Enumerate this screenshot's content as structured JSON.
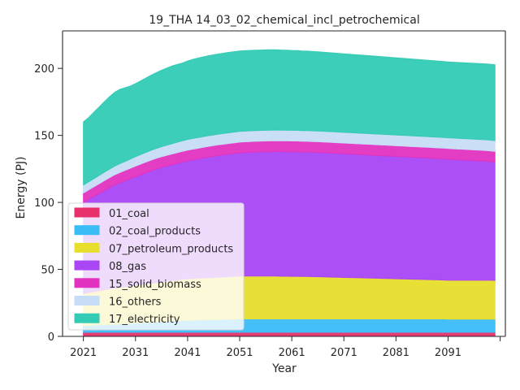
{
  "chart_data": {
    "type": "area",
    "title": "19_THA 14_03_02_chemical_incl_petrochemical",
    "xlabel": "Year",
    "ylabel": "Energy (PJ)",
    "xlim": [
      2017,
      2102
    ],
    "ylim": [
      0,
      228
    ],
    "x_ticks": [
      2021,
      2031,
      2041,
      2051,
      2061,
      2071,
      2081,
      2091,
      2101
    ],
    "x_tick_labels": [
      "2021",
      "2031",
      "2041",
      "2051",
      "2061",
      "2071",
      "2081",
      "2091",
      ""
    ],
    "y_ticks": [
      0,
      50,
      100,
      150,
      200
    ],
    "y_tick_labels": [
      "0",
      "50",
      "100",
      "150",
      "200"
    ],
    "legend_position": "lower-left",
    "stacked": true,
    "x": [
      2021,
      2022,
      2023,
      2024,
      2025,
      2026,
      2027,
      2028,
      2029,
      2030,
      2031,
      2032,
      2033,
      2034,
      2035,
      2036,
      2037,
      2038,
      2039,
      2040,
      2041,
      2042,
      2043,
      2044,
      2045,
      2046,
      2047,
      2048,
      2049,
      2050,
      2051,
      2052,
      2053,
      2054,
      2055,
      2056,
      2057,
      2058,
      2059,
      2060,
      2061,
      2062,
      2063,
      2064,
      2065,
      2066,
      2067,
      2068,
      2069,
      2070,
      2071,
      2072,
      2073,
      2074,
      2075,
      2076,
      2077,
      2078,
      2079,
      2080,
      2081,
      2082,
      2083,
      2084,
      2085,
      2086,
      2087,
      2088,
      2089,
      2090,
      2091,
      2092,
      2093,
      2094,
      2095,
      2096,
      2097,
      2098,
      2099,
      2100
    ],
    "series": [
      {
        "name": "01_coal",
        "color": "#e8306a",
        "values": [
          3.0,
          3.0,
          3.0,
          3.0,
          3.0,
          3.0,
          3.0,
          3.0,
          3.0,
          3.0,
          3.0,
          3.0,
          3.0,
          3.0,
          3.0,
          3.0,
          3.0,
          3.0,
          3.0,
          3.0,
          3.0,
          3.0,
          3.0,
          3.0,
          3.0,
          3.0,
          3.0,
          3.0,
          3.0,
          3.0,
          3.0,
          3.0,
          3.0,
          3.0,
          3.0,
          3.0,
          3.0,
          3.0,
          3.0,
          3.0,
          3.0,
          3.0,
          3.0,
          3.0,
          3.0,
          3.0,
          3.0,
          3.0,
          3.0,
          3.0,
          3.0,
          3.0,
          3.0,
          3.0,
          3.0,
          3.0,
          3.0,
          3.0,
          3.0,
          3.0,
          3.0,
          3.0,
          3.0,
          3.0,
          3.0,
          3.0,
          3.0,
          3.0,
          3.0,
          3.0,
          3.0,
          3.0,
          3.0,
          3.0,
          3.0,
          3.0,
          3.0,
          3.0,
          3.0,
          3.0
        ]
      },
      {
        "name": "02_coal_products",
        "color": "#3bbcf7",
        "values": [
          5.0,
          5.2,
          5.4,
          5.6,
          5.8,
          6.0,
          6.2,
          6.4,
          6.6,
          6.8,
          7.0,
          7.2,
          7.4,
          7.6,
          7.8,
          8.0,
          8.2,
          8.4,
          8.6,
          8.8,
          9.0,
          9.1,
          9.2,
          9.3,
          9.4,
          9.5,
          9.6,
          9.7,
          9.8,
          9.9,
          10.0,
          10.0,
          10.0,
          10.0,
          10.0,
          10.0,
          10.0,
          10.0,
          10.0,
          10.0,
          10.0,
          10.0,
          10.0,
          10.0,
          10.0,
          10.0,
          10.0,
          10.0,
          10.0,
          10.0,
          10.0,
          10.0,
          10.0,
          10.0,
          10.0,
          10.0,
          10.0,
          10.0,
          10.0,
          10.0,
          10.0,
          10.0,
          10.0,
          10.0,
          10.0,
          10.0,
          10.0,
          10.0,
          10.0,
          10.0,
          9.9,
          9.9,
          9.9,
          9.9,
          9.9,
          9.9,
          9.9,
          9.9,
          9.9,
          9.8
        ]
      },
      {
        "name": "07_petroleum_products",
        "color": "#e8de2c",
        "values": [
          24.0,
          24.5,
          25.0,
          25.5,
          26.0,
          26.4,
          26.8,
          27.2,
          27.5,
          27.8,
          28.1,
          28.4,
          28.7,
          29.0,
          29.3,
          29.6,
          29.9,
          30.2,
          30.5,
          30.8,
          31.0,
          31.1,
          31.2,
          31.3,
          31.4,
          31.5,
          31.6,
          31.7,
          31.8,
          31.9,
          32.0,
          32.0,
          32.0,
          32.0,
          32.0,
          32.0,
          32.0,
          32.0,
          31.9,
          31.9,
          31.8,
          31.8,
          31.7,
          31.7,
          31.6,
          31.5,
          31.4,
          31.3,
          31.2,
          31.1,
          31.0,
          30.9,
          30.8,
          30.7,
          30.6,
          30.5,
          30.4,
          30.3,
          30.2,
          30.1,
          30.0,
          29.9,
          29.8,
          29.7,
          29.6,
          29.5,
          29.4,
          29.3,
          29.2,
          29.1,
          29.0,
          29.0,
          29.0,
          29.0,
          29.0,
          29.0,
          29.0,
          29.0,
          29.0,
          29.0
        ]
      },
      {
        "name": "08_gas",
        "color": "#a946f5",
        "values": [
          68.0,
          69.5,
          71.0,
          72.5,
          74.0,
          75.5,
          77.0,
          78.0,
          79.0,
          80.0,
          81.0,
          82.0,
          83.0,
          84.0,
          84.8,
          85.5,
          86.0,
          86.5,
          87.0,
          87.5,
          88.0,
          88.5,
          89.0,
          89.5,
          90.0,
          90.4,
          90.8,
          91.1,
          91.4,
          91.7,
          92.0,
          92.2,
          92.4,
          92.6,
          92.7,
          92.8,
          92.9,
          93.0,
          93.0,
          93.0,
          93.0,
          93.0,
          92.9,
          92.9,
          92.8,
          92.8,
          92.7,
          92.6,
          92.5,
          92.4,
          92.3,
          92.2,
          92.1,
          92.0,
          91.9,
          91.8,
          91.7,
          91.6,
          91.5,
          91.4,
          91.3,
          91.2,
          91.1,
          91.0,
          90.9,
          90.8,
          90.7,
          90.6,
          90.5,
          90.4,
          90.3,
          90.1,
          89.9,
          89.7,
          89.5,
          89.3,
          89.1,
          88.9,
          88.6,
          88.3
        ]
      },
      {
        "name": "15_solid_biomass",
        "color": "#e233c0",
        "values": [
          7.0,
          7.1,
          7.2,
          7.3,
          7.4,
          7.5,
          7.6,
          7.7,
          7.8,
          7.9,
          8.0,
          8.0,
          8.0,
          8.0,
          8.0,
          8.0,
          8.0,
          8.0,
          8.0,
          8.0,
          8.0,
          8.0,
          8.0,
          8.0,
          8.0,
          8.0,
          8.0,
          8.0,
          8.0,
          8.0,
          8.0,
          8.0,
          8.0,
          8.0,
          8.0,
          8.0,
          8.0,
          8.0,
          8.0,
          8.0,
          8.0,
          8.0,
          8.0,
          8.0,
          8.0,
          8.0,
          8.0,
          8.0,
          8.0,
          8.0,
          8.0,
          8.0,
          8.0,
          8.0,
          8.0,
          8.0,
          8.0,
          8.0,
          8.0,
          8.0,
          8.0,
          8.0,
          8.0,
          8.0,
          8.0,
          8.0,
          8.0,
          8.0,
          8.0,
          8.0,
          8.0,
          8.0,
          8.0,
          8.0,
          8.0,
          8.0,
          8.0,
          8.0,
          8.0,
          8.0
        ]
      },
      {
        "name": "16_others",
        "color": "#c7dcf6",
        "values": [
          6.0,
          6.0,
          6.1,
          6.2,
          6.3,
          6.4,
          6.5,
          6.6,
          6.7,
          6.8,
          7.0,
          7.1,
          7.2,
          7.3,
          7.4,
          7.5,
          7.6,
          7.7,
          7.8,
          7.9,
          8.0,
          8.0,
          8.0,
          8.0,
          8.0,
          8.0,
          8.0,
          8.0,
          8.0,
          8.0,
          8.0,
          8.0,
          8.0,
          8.0,
          8.0,
          8.0,
          8.0,
          8.0,
          8.0,
          8.0,
          8.0,
          8.0,
          8.0,
          8.0,
          8.0,
          8.0,
          8.0,
          8.0,
          8.0,
          8.0,
          8.0,
          8.0,
          8.0,
          8.0,
          8.0,
          8.0,
          8.0,
          8.0,
          8.0,
          8.0,
          8.0,
          8.0,
          8.0,
          8.0,
          8.0,
          8.0,
          8.0,
          8.0,
          8.0,
          8.0,
          8.0,
          8.0,
          8.0,
          8.0,
          8.0,
          8.0,
          8.0,
          8.0,
          8.0,
          8.0
        ]
      },
      {
        "name": "17_electricity",
        "color": "#33cbb5",
        "values": [
          47.0,
          48.0,
          49.5,
          51.0,
          52.5,
          54.0,
          55.0,
          55.5,
          55.0,
          54.5,
          54.5,
          55.0,
          55.5,
          56.0,
          56.5,
          57.0,
          57.5,
          58.0,
          58.0,
          58.0,
          58.5,
          59.0,
          59.3,
          59.5,
          59.6,
          59.7,
          59.8,
          59.9,
          60.0,
          60.0,
          60.0,
          60.0,
          60.0,
          60.0,
          60.0,
          60.0,
          60.0,
          59.9,
          59.8,
          59.7,
          59.6,
          59.5,
          59.4,
          59.3,
          59.2,
          59.1,
          59.0,
          58.9,
          58.8,
          58.7,
          58.6,
          58.5,
          58.4,
          58.3,
          58.2,
          58.1,
          58.0,
          57.9,
          57.8,
          57.7,
          57.6,
          57.5,
          57.4,
          57.3,
          57.2,
          57.1,
          57.0,
          56.9,
          56.8,
          56.7,
          56.6,
          56.6,
          56.6,
          56.6,
          56.6,
          56.6,
          56.6,
          56.6,
          56.6,
          56.6
        ]
      }
    ]
  }
}
